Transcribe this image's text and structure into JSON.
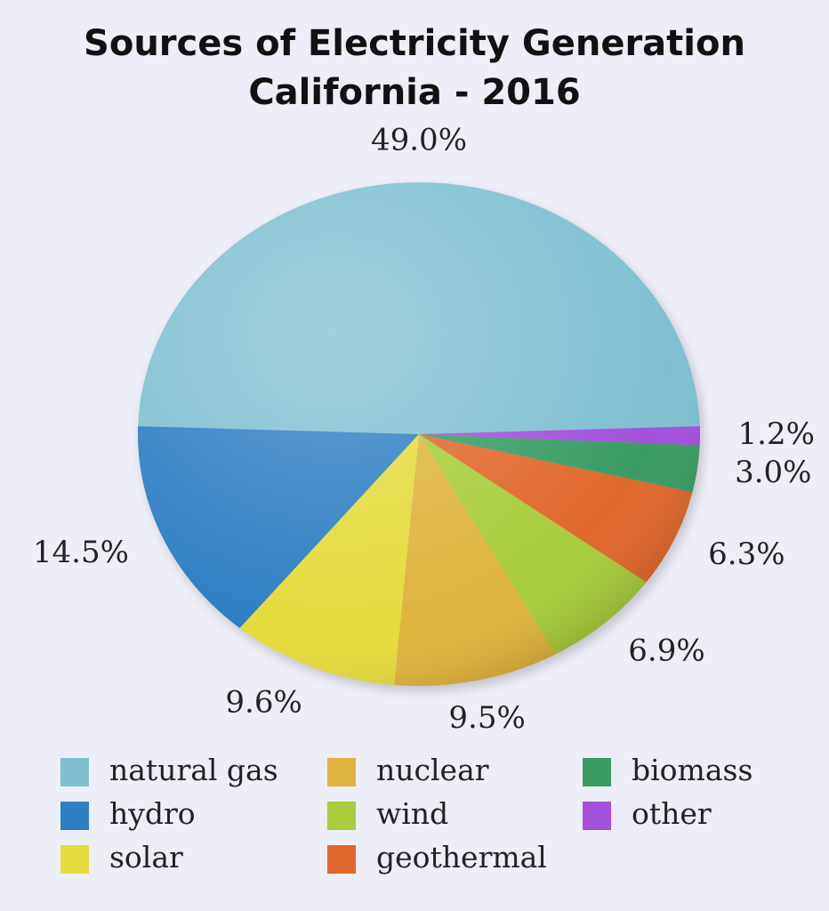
{
  "chart_data": {
    "type": "pie",
    "title": "Sources of Electricity Generation",
    "subtitle": "California - 2016",
    "categories": [
      "natural gas",
      "hydro",
      "solar",
      "nuclear",
      "wind",
      "geothermal",
      "biomass",
      "other"
    ],
    "values": [
      49.0,
      14.5,
      9.6,
      9.5,
      6.9,
      6.3,
      3.0,
      1.2
    ],
    "value_labels": [
      "49.0%",
      "14.5%",
      "9.6%",
      "9.5%",
      "6.9%",
      "6.3%",
      "3.0%",
      "1.2%"
    ],
    "colors": [
      "#7fc0d0",
      "#2f7fc4",
      "#e4dc3c",
      "#deb43e",
      "#a8cc3c",
      "#e0682c",
      "#3a9c64",
      "#a450dc"
    ]
  }
}
